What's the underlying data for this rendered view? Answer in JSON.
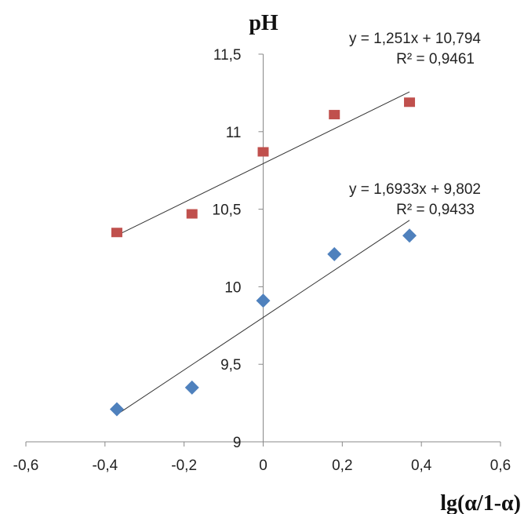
{
  "chart_data": {
    "type": "scatter",
    "xlabel": "lg(α/1-α)",
    "ylabel": "pH",
    "xlim": [
      -0.6,
      0.6
    ],
    "ylim": [
      9,
      11.5
    ],
    "x_ticks": [
      "-0,6",
      "-0,4",
      "-0,2",
      "0",
      "0,2",
      "0,4",
      "0,6"
    ],
    "y_ticks": [
      "9",
      "9,5",
      "10",
      "10,5",
      "11",
      "11,5"
    ],
    "grid": false,
    "legend": "none",
    "series": [
      {
        "marker": "square",
        "color": "#c0504d",
        "points": [
          {
            "x": -0.37,
            "y": 10.35
          },
          {
            "x": -0.18,
            "y": 10.47
          },
          {
            "x": 0.0,
            "y": 10.87
          },
          {
            "x": 0.18,
            "y": 11.11
          },
          {
            "x": 0.37,
            "y": 11.19
          }
        ],
        "trendline": {
          "slope": 1.251,
          "intercept": 10.794,
          "x_range": [
            -0.37,
            0.37
          ]
        },
        "equation": "y = 1,251x + 10,794",
        "r2": "R² = 0,9461"
      },
      {
        "marker": "diamond",
        "color": "#4f81bd",
        "points": [
          {
            "x": -0.37,
            "y": 9.21
          },
          {
            "x": -0.18,
            "y": 9.35
          },
          {
            "x": 0.0,
            "y": 9.91
          },
          {
            "x": 0.18,
            "y": 10.21
          },
          {
            "x": 0.37,
            "y": 10.33
          }
        ],
        "trendline": {
          "slope": 1.6933,
          "intercept": 9.802,
          "x_range": [
            -0.37,
            0.37
          ]
        },
        "equation": "y = 1,6933x + 9,802",
        "r2": "R² = 0,9433"
      }
    ]
  }
}
